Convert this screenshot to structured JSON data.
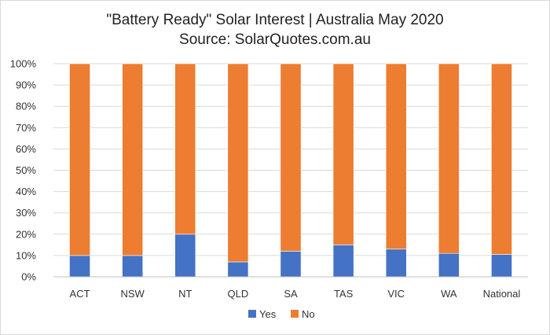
{
  "chart_data": {
    "type": "bar",
    "stacked": true,
    "percent": true,
    "title": "\"Battery Ready\" Solar Interest  |  Australia May 2020",
    "subtitle": "Source: SolarQuotes.com.au",
    "categories": [
      "ACT",
      "NSW",
      "NT",
      "QLD",
      "SA",
      "TAS",
      "VIC",
      "WA",
      "National"
    ],
    "series": [
      {
        "name": "Yes",
        "color": "#4472C4",
        "values": [
          10,
          10,
          20,
          7,
          12,
          15,
          13,
          11,
          10.5
        ]
      },
      {
        "name": "No",
        "color": "#ED7D31",
        "values": [
          90,
          90,
          80,
          93,
          88,
          85,
          87,
          89,
          89.5
        ]
      }
    ],
    "ylim": [
      0,
      100
    ],
    "yticks": [
      "0%",
      "10%",
      "20%",
      "30%",
      "40%",
      "50%",
      "60%",
      "70%",
      "80%",
      "90%",
      "100%"
    ],
    "xlabel": "",
    "ylabel": "",
    "grid": true,
    "legend_position": "bottom"
  }
}
